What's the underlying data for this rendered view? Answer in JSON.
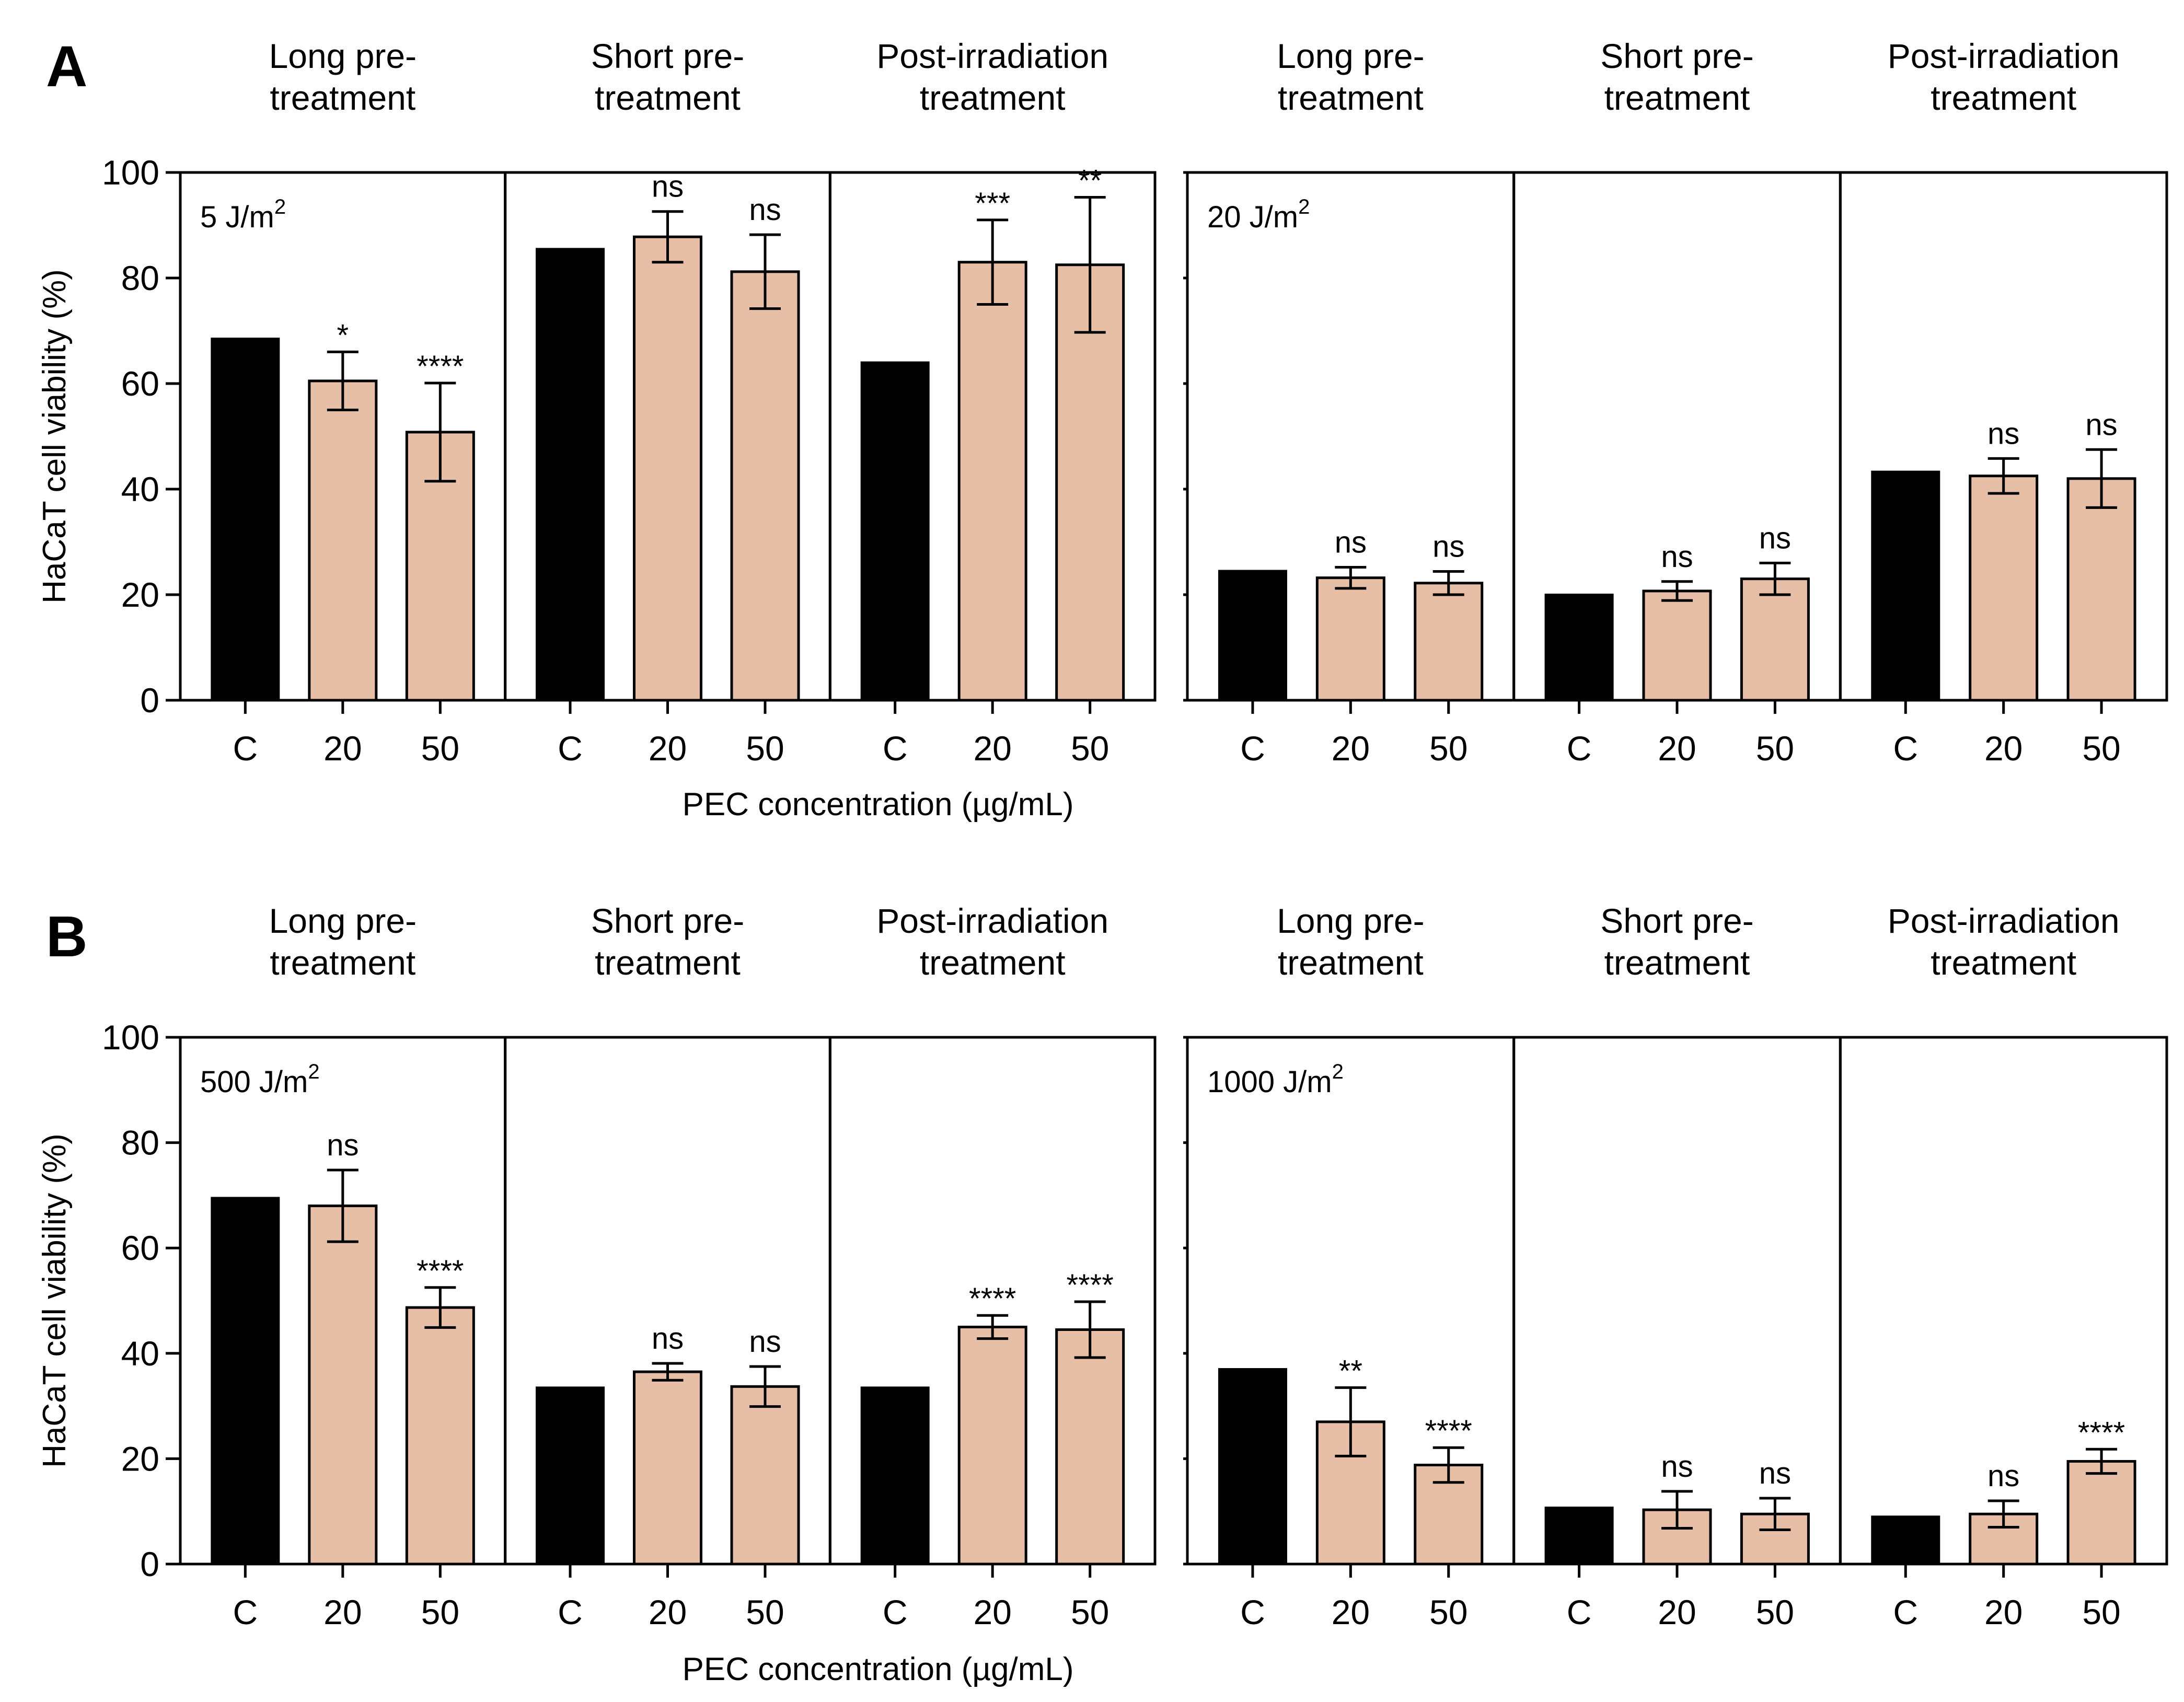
{
  "chart_data": [
    {
      "panel": "A",
      "type": "bar",
      "ylabel": "HaCaT cell viability (%)",
      "xlabel": "PEC concentration (µg/mL)",
      "ylim": [
        0,
        100
      ],
      "yticks": [
        "0",
        "20",
        "40",
        "60",
        "80",
        "100"
      ],
      "categories": [
        "C",
        "20",
        "50"
      ],
      "doses": [
        {
          "label": "5 J/m",
          "superscript": "2",
          "groups": [
            {
              "title": [
                "Long pre-",
                "treatment"
              ],
              "values": [
                68.5,
                60.5,
                50.8
              ],
              "errors": [
                0,
                5.5,
                9.3
              ],
              "sig": [
                "",
                "*",
                "****"
              ]
            },
            {
              "title": [
                "Short pre-",
                "treatment"
              ],
              "values": [
                85.5,
                87.8,
                81.2
              ],
              "errors": [
                0,
                4.8,
                7.0
              ],
              "sig": [
                "",
                "ns",
                "ns"
              ]
            },
            {
              "title": [
                "Post-irradiation",
                "treatment"
              ],
              "values": [
                64.0,
                83.0,
                82.5
              ],
              "errors": [
                0,
                8.0,
                12.8
              ],
              "sig": [
                "",
                "***",
                "**"
              ]
            }
          ]
        },
        {
          "label": "20 J/m",
          "superscript": "2",
          "groups": [
            {
              "title": [
                "Long pre-",
                "treatment"
              ],
              "values": [
                24.5,
                23.2,
                22.2
              ],
              "errors": [
                0,
                2.0,
                2.2
              ],
              "sig": [
                "",
                "ns",
                "ns"
              ]
            },
            {
              "title": [
                "Short pre-",
                "treatment"
              ],
              "values": [
                20.0,
                20.7,
                23.0
              ],
              "errors": [
                0,
                1.8,
                3.0
              ],
              "sig": [
                "",
                "ns",
                "ns"
              ]
            },
            {
              "title": [
                "Post-irradiation",
                "treatment"
              ],
              "values": [
                43.3,
                42.5,
                42.0
              ],
              "errors": [
                0,
                3.3,
                5.5
              ],
              "sig": [
                "",
                "ns",
                "ns"
              ]
            }
          ]
        }
      ]
    },
    {
      "panel": "B",
      "type": "bar",
      "ylabel": "HaCaT cell viability (%)",
      "xlabel": "PEC concentration (µg/mL)",
      "ylim": [
        0,
        100
      ],
      "yticks": [
        "0",
        "20",
        "40",
        "60",
        "80",
        "100"
      ],
      "categories": [
        "C",
        "20",
        "50"
      ],
      "doses": [
        {
          "label": "500 J/m",
          "superscript": "2",
          "groups": [
            {
              "title": [
                "Long pre-",
                "treatment"
              ],
              "values": [
                69.5,
                68.0,
                48.7
              ],
              "errors": [
                0,
                6.8,
                3.8
              ],
              "sig": [
                "",
                "ns",
                "****"
              ]
            },
            {
              "title": [
                "Short pre-",
                "treatment"
              ],
              "values": [
                33.5,
                36.5,
                33.7
              ],
              "errors": [
                0,
                1.6,
                3.8
              ],
              "sig": [
                "",
                "ns",
                "ns"
              ]
            },
            {
              "title": [
                "Post-irradiation",
                "treatment"
              ],
              "values": [
                33.5,
                45.0,
                44.5
              ],
              "errors": [
                0,
                2.2,
                5.3
              ],
              "sig": [
                "",
                "****",
                "****"
              ]
            }
          ]
        },
        {
          "label": "1000 J/m",
          "superscript": "2",
          "groups": [
            {
              "title": [
                "Long pre-",
                "treatment"
              ],
              "values": [
                37.0,
                27.0,
                18.8
              ],
              "errors": [
                0,
                6.5,
                3.3
              ],
              "sig": [
                "",
                "**",
                "****"
              ]
            },
            {
              "title": [
                "Short pre-",
                "treatment"
              ],
              "values": [
                10.7,
                10.3,
                9.5
              ],
              "errors": [
                0,
                3.5,
                3.0
              ],
              "sig": [
                "",
                "ns",
                "ns"
              ]
            },
            {
              "title": [
                "Post-irradiation",
                "treatment"
              ],
              "values": [
                9.0,
                9.5,
                19.5
              ],
              "errors": [
                0,
                2.5,
                2.3
              ],
              "sig": [
                "",
                "ns",
                "****"
              ]
            }
          ]
        }
      ]
    }
  ]
}
